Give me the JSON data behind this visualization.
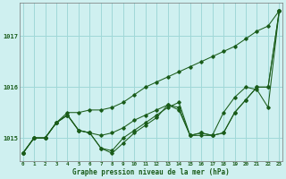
{
  "background_color": "#cff0f0",
  "grid_color": "#a0d8d8",
  "line_color": "#1a5c1a",
  "xlabel": "Graphe pression niveau de la mer (hPa)",
  "hours": [
    0,
    1,
    2,
    3,
    4,
    5,
    6,
    7,
    8,
    9,
    10,
    11,
    12,
    13,
    14,
    15,
    16,
    17,
    18,
    19,
    20,
    21,
    22,
    23
  ],
  "series_upper": [
    1014.7,
    1015.0,
    1015.0,
    1015.3,
    1015.5,
    1015.5,
    1015.55,
    1015.55,
    1015.6,
    1015.7,
    1015.85,
    1016.0,
    1016.1,
    1016.2,
    1016.3,
    1016.4,
    1016.5,
    1016.6,
    1016.7,
    1016.8,
    1016.95,
    1017.1,
    1017.2,
    1017.5
  ],
  "series_mid1": [
    1014.7,
    1015.0,
    1015.0,
    1015.3,
    1015.45,
    1015.15,
    1015.1,
    1015.05,
    1015.1,
    1015.2,
    1015.35,
    1015.45,
    1015.55,
    1015.65,
    1015.55,
    1015.05,
    1015.1,
    1015.05,
    1015.1,
    1015.5,
    1015.75,
    1016.0,
    1016.0,
    1017.5
  ],
  "series_mid2": [
    1014.7,
    1015.0,
    1015.0,
    1015.3,
    1015.45,
    1015.15,
    1015.1,
    1014.8,
    1014.75,
    1015.0,
    1015.15,
    1015.3,
    1015.45,
    1015.6,
    1015.7,
    1015.05,
    1015.1,
    1015.05,
    1015.1,
    1015.5,
    1015.75,
    1016.0,
    1016.0,
    1017.5
  ],
  "series_lower": [
    1014.7,
    1015.0,
    1015.0,
    1015.3,
    1015.45,
    1015.15,
    1015.1,
    1014.8,
    1014.7,
    1014.9,
    1015.1,
    1015.25,
    1015.4,
    1015.65,
    1015.6,
    1015.05,
    1015.05,
    1015.05,
    1015.5,
    1015.8,
    1016.0,
    1015.95,
    1015.6,
    1017.5
  ],
  "ylim": [
    1014.55,
    1017.65
  ],
  "yticks": [
    1015,
    1016,
    1017
  ],
  "xlim": [
    -0.3,
    23.3
  ]
}
